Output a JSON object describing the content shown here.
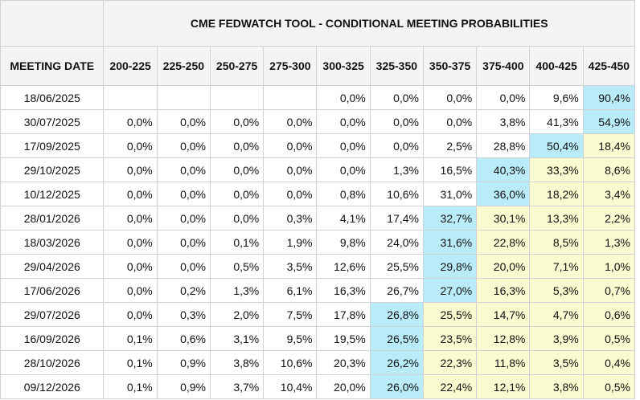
{
  "title": "CME FEDWATCH TOOL - CONDITIONAL MEETING PROBABILITIES",
  "date_header": "MEETING DATE",
  "colors": {
    "max": "#b9ecf8",
    "above": "#fafbd0",
    "header_bg": "#f4f4f5",
    "grid": "#cfd3d8"
  },
  "chart_data": {
    "type": "table",
    "title": "CME FEDWATCH TOOL - CONDITIONAL MEETING PROBABILITIES",
    "columns": [
      "200-225",
      "225-250",
      "250-275",
      "275-300",
      "300-325",
      "325-350",
      "350-375",
      "375-400",
      "400-425",
      "425-450"
    ],
    "rows": [
      {
        "date": "18/06/2025",
        "values": [
          "",
          "",
          "",
          "",
          "0,0%",
          "0,0%",
          "0,0%",
          "0,0%",
          "9,6%",
          "90,4%"
        ],
        "max_index": 9
      },
      {
        "date": "30/07/2025",
        "values": [
          "0,0%",
          "0,0%",
          "0,0%",
          "0,0%",
          "0,0%",
          "0,0%",
          "0,0%",
          "3,8%",
          "41,3%",
          "54,9%"
        ],
        "max_index": 9
      },
      {
        "date": "17/09/2025",
        "values": [
          "0,0%",
          "0,0%",
          "0,0%",
          "0,0%",
          "0,0%",
          "0,0%",
          "2,5%",
          "28,8%",
          "50,4%",
          "18,4%"
        ],
        "max_index": 8
      },
      {
        "date": "29/10/2025",
        "values": [
          "0,0%",
          "0,0%",
          "0,0%",
          "0,0%",
          "0,0%",
          "1,3%",
          "16,5%",
          "40,3%",
          "33,3%",
          "8,6%"
        ],
        "max_index": 7
      },
      {
        "date": "10/12/2025",
        "values": [
          "0,0%",
          "0,0%",
          "0,0%",
          "0,0%",
          "0,8%",
          "10,6%",
          "31,0%",
          "36,0%",
          "18,2%",
          "3,4%"
        ],
        "max_index": 7
      },
      {
        "date": "28/01/2026",
        "values": [
          "0,0%",
          "0,0%",
          "0,0%",
          "0,3%",
          "4,1%",
          "17,4%",
          "32,7%",
          "30,1%",
          "13,3%",
          "2,2%"
        ],
        "max_index": 6
      },
      {
        "date": "18/03/2026",
        "values": [
          "0,0%",
          "0,0%",
          "0,1%",
          "1,9%",
          "9,8%",
          "24,0%",
          "31,6%",
          "22,8%",
          "8,5%",
          "1,3%"
        ],
        "max_index": 6
      },
      {
        "date": "29/04/2026",
        "values": [
          "0,0%",
          "0,0%",
          "0,5%",
          "3,5%",
          "12,6%",
          "25,5%",
          "29,8%",
          "20,0%",
          "7,1%",
          "1,0%"
        ],
        "max_index": 6
      },
      {
        "date": "17/06/2026",
        "values": [
          "0,0%",
          "0,2%",
          "1,3%",
          "6,1%",
          "16,3%",
          "26,7%",
          "27,0%",
          "16,3%",
          "5,3%",
          "0,7%"
        ],
        "max_index": 6
      },
      {
        "date": "29/07/2026",
        "values": [
          "0,0%",
          "0,3%",
          "2,0%",
          "7,5%",
          "17,8%",
          "26,8%",
          "25,5%",
          "14,7%",
          "4,7%",
          "0,6%"
        ],
        "max_index": 5
      },
      {
        "date": "16/09/2026",
        "values": [
          "0,1%",
          "0,6%",
          "3,1%",
          "9,5%",
          "19,5%",
          "26,5%",
          "23,5%",
          "12,8%",
          "3,9%",
          "0,5%"
        ],
        "max_index": 5
      },
      {
        "date": "28/10/2026",
        "values": [
          "0,1%",
          "0,9%",
          "3,8%",
          "10,6%",
          "20,3%",
          "26,2%",
          "22,3%",
          "11,8%",
          "3,5%",
          "0,4%"
        ],
        "max_index": 5
      },
      {
        "date": "09/12/2026",
        "values": [
          "0,1%",
          "0,9%",
          "3,7%",
          "10,4%",
          "20,0%",
          "26,0%",
          "22,4%",
          "12,1%",
          "3,8%",
          "0,5%"
        ],
        "max_index": 5
      }
    ]
  }
}
